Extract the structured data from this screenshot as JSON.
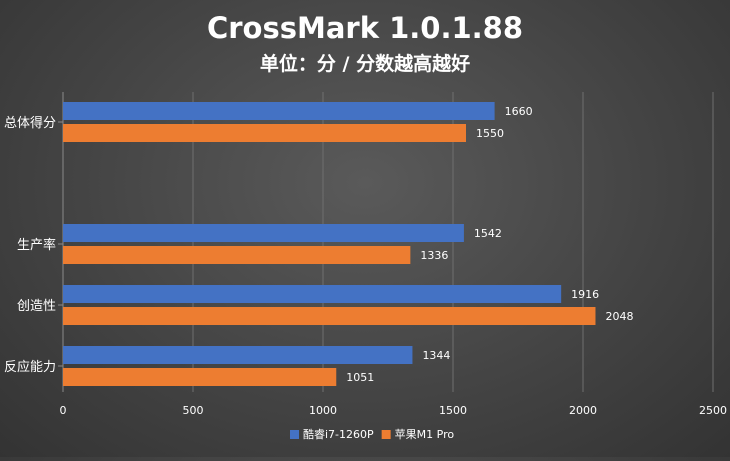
{
  "chart_data": {
    "type": "bar",
    "orientation": "horizontal",
    "title": "CrossMark 1.0.1.88",
    "subtitle": "单位：分 / 分数越高越好",
    "categories": [
      "总体得分",
      "生产率",
      "创造性",
      "反应能力"
    ],
    "series": [
      {
        "name": "酷睿i7-1260P",
        "values": [
          1660,
          1542,
          1916,
          1344
        ],
        "color": "#4472C4"
      },
      {
        "name": "苹果M1 Pro",
        "values": [
          1550,
          1336,
          2048,
          1051
        ],
        "color": "#ED7D31"
      }
    ],
    "xlim": [
      0,
      2500
    ],
    "xticks": [
      0,
      500,
      1000,
      1500,
      2000,
      2500
    ],
    "grid": "vertical",
    "legend_position": "bottom"
  }
}
